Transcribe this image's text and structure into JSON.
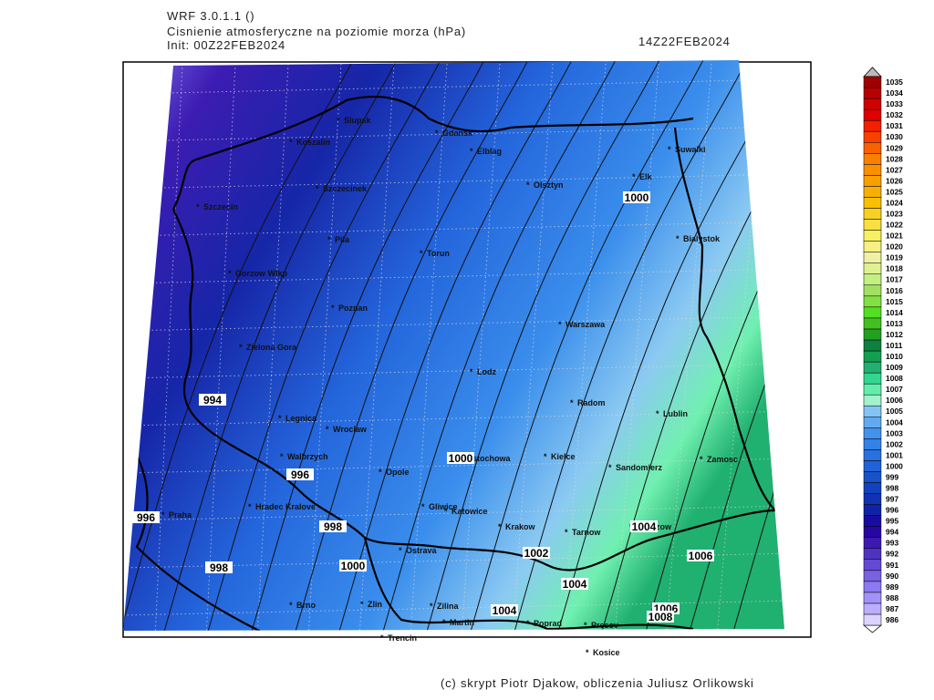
{
  "header": {
    "model": "WRF 3.0.1.1 ()",
    "title": "Cisnienie atmosferyczne na poziomie morza (hPa)",
    "init": "Init: 00Z22FEB2024",
    "valid": "14Z22FEB2024"
  },
  "footer": "(c) skrypt Piotr Djakow, obliczenia Juliusz Orlikowski",
  "cities": [
    "Slupsk",
    "Koszalin",
    "Gdansk",
    "Elblag",
    "Olsztyn",
    "Elk",
    "Suwalki",
    "Szczecinek",
    "Szczecin",
    "Pila",
    "Torun",
    "Bialystok",
    "Gorzow Wlkp",
    "Poznan",
    "Warszawa",
    "Zielona Gora",
    "Lodz",
    "Radom",
    "Lublin",
    "Legnica",
    "Wroclaw",
    "Walbrzych",
    "Czestochowa",
    "Kielce",
    "Zamosc",
    "Sandomierz",
    "Opole",
    "Praha",
    "Hradec Kralove",
    "Gliwice",
    "Katowice",
    "Krakow",
    "Tarnow",
    "Rzeszow",
    "Ostrava",
    "Brno",
    "Zlin",
    "Zilina",
    "Martin",
    "Poprad",
    "Presov",
    "Trencin",
    "Kosice"
  ],
  "contour_labels": [
    1000,
    994,
    996,
    996,
    998,
    998,
    1000,
    1000,
    1002,
    1004,
    1004,
    1006,
    1006,
    1008,
    1004
  ],
  "colorbar": {
    "levels": [
      {
        "value": 986,
        "color": "#dcd4ff"
      },
      {
        "value": 987,
        "color": "#bcaeff"
      },
      {
        "value": 988,
        "color": "#a292f8"
      },
      {
        "value": 989,
        "color": "#8c7af0"
      },
      {
        "value": 990,
        "color": "#7862e2"
      },
      {
        "value": 991,
        "color": "#644ad2"
      },
      {
        "value": 992,
        "color": "#5032c2"
      },
      {
        "value": 993,
        "color": "#3c1ab2"
      },
      {
        "value": 994,
        "color": "#2806a2"
      },
      {
        "value": 995,
        "color": "#180ca0"
      },
      {
        "value": 996,
        "color": "#1022a8"
      },
      {
        "value": 997,
        "color": "#1032b2"
      },
      {
        "value": 998,
        "color": "#1242c0"
      },
      {
        "value": 999,
        "color": "#1852c8"
      },
      {
        "value": 1000,
        "color": "#2062d8"
      },
      {
        "value": 1001,
        "color": "#2872e0"
      },
      {
        "value": 1002,
        "color": "#3282e8"
      },
      {
        "value": 1003,
        "color": "#4292ec"
      },
      {
        "value": 1004,
        "color": "#62aaf0"
      },
      {
        "value": 1005,
        "color": "#84c4f4"
      },
      {
        "value": 1006,
        "color": "#a2f2cc"
      },
      {
        "value": 1007,
        "color": "#62eeaa"
      },
      {
        "value": 1008,
        "color": "#32d690"
      },
      {
        "value": 1009,
        "color": "#22b070"
      },
      {
        "value": 1010,
        "color": "#12a050"
      },
      {
        "value": 1011,
        "color": "#108040"
      },
      {
        "value": 1012,
        "color": "#22a022"
      },
      {
        "value": 1013,
        "color": "#42c022"
      },
      {
        "value": 1014,
        "color": "#52e022"
      },
      {
        "value": 1015,
        "color": "#82e042"
      },
      {
        "value": 1016,
        "color": "#a2e062"
      },
      {
        "value": 1017,
        "color": "#c2f082"
      },
      {
        "value": 1018,
        "color": "#e0f092"
      },
      {
        "value": 1019,
        "color": "#f0f0a2"
      },
      {
        "value": 1020,
        "color": "#f8f082"
      },
      {
        "value": 1021,
        "color": "#f8f062"
      },
      {
        "value": 1022,
        "color": "#f8e042"
      },
      {
        "value": 1023,
        "color": "#f8d022"
      },
      {
        "value": 1024,
        "color": "#f8c002"
      },
      {
        "value": 1025,
        "color": "#f8b000"
      },
      {
        "value": 1026,
        "color": "#f8a000"
      },
      {
        "value": 1027,
        "color": "#f89000"
      },
      {
        "value": 1028,
        "color": "#f88000"
      },
      {
        "value": 1029,
        "color": "#f86000"
      },
      {
        "value": 1030,
        "color": "#f84000"
      },
      {
        "value": 1031,
        "color": "#f02000"
      },
      {
        "value": 1032,
        "color": "#e00000"
      },
      {
        "value": 1033,
        "color": "#d00000"
      },
      {
        "value": 1034,
        "color": "#b80000"
      },
      {
        "value": 1035,
        "color": "#a00000"
      }
    ]
  }
}
